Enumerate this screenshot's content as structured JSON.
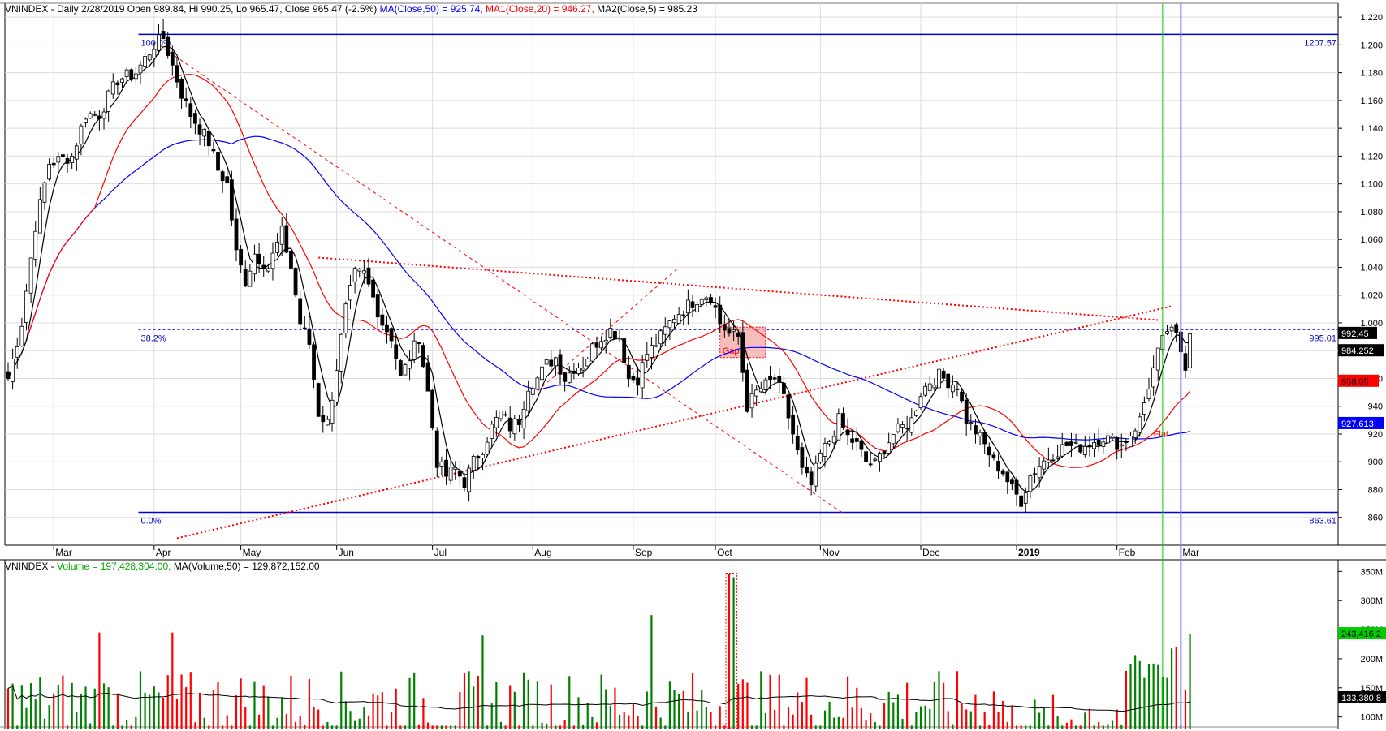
{
  "price_header": {
    "title": "VNINDEX - Daily 2/28/2019 Open 989.84, Hi 990.25, Lo 965.47, Close 965.47 (-2.5%)",
    "ma50": "MA(Close,50) = 925.74,",
    "ma20": "MA1(Close,20) = 946.27,",
    "ma5": "MA2(Close,5) = 985.23"
  },
  "volume_header": {
    "title": "VNINDEX - ",
    "vol": "Volume = 197,428,304.00,",
    "ma": "MA(Volume,50) = 129,872,152.00"
  },
  "colors": {
    "up": "#008000",
    "down": "#ff0000",
    "ma50": "#0000ff",
    "ma20": "#ff0000",
    "ma5": "#000000",
    "fib": "#0000cc",
    "trend": "#ff0000",
    "marker_green": "#00cc00",
    "marker_blue": "#8080ff",
    "grid": "#dcdcdc"
  },
  "chart_data": [
    {
      "type": "candlestick",
      "title": "VNINDEX - Daily",
      "ylim": [
        840,
        1230
      ],
      "y_ticks": [
        860,
        880,
        900,
        920,
        940,
        960,
        980,
        1000,
        1020,
        1040,
        1060,
        1080,
        1100,
        1120,
        1140,
        1160,
        1180,
        1200,
        1220
      ],
      "x_tick_labels": [
        {
          "label": "Mar",
          "i": 10
        },
        {
          "label": "Apr",
          "i": 32
        },
        {
          "label": "May",
          "i": 51
        },
        {
          "label": "Jun",
          "i": 72
        },
        {
          "label": "Jul",
          "i": 93
        },
        {
          "label": "Aug",
          "i": 115
        },
        {
          "label": "Sep",
          "i": 137
        },
        {
          "label": "Oct",
          "i": 155
        },
        {
          "label": "Nov",
          "i": 178
        },
        {
          "label": "Dec",
          "i": 200
        },
        {
          "label": "2019",
          "i": 221,
          "bold": true
        },
        {
          "label": "Feb",
          "i": 243
        },
        {
          "label": "Mar",
          "i": 257
        }
      ],
      "n_bars": 260,
      "anchors": [
        [
          0,
          960
        ],
        [
          3,
          1000
        ],
        [
          6,
          1070
        ],
        [
          9,
          1115
        ],
        [
          14,
          1120
        ],
        [
          17,
          1150
        ],
        [
          20,
          1150
        ],
        [
          24,
          1175
        ],
        [
          28,
          1180
        ],
        [
          32,
          1200
        ],
        [
          34,
          1205
        ],
        [
          36,
          1185
        ],
        [
          38,
          1165
        ],
        [
          40,
          1150
        ],
        [
          42,
          1140
        ],
        [
          44,
          1130
        ],
        [
          46,
          1110
        ],
        [
          48,
          1100
        ],
        [
          50,
          1050
        ],
        [
          52,
          1030
        ],
        [
          54,
          1050
        ],
        [
          57,
          1040
        ],
        [
          60,
          1065
        ],
        [
          62,
          1040
        ],
        [
          64,
          1000
        ],
        [
          66,
          985
        ],
        [
          68,
          935
        ],
        [
          70,
          928
        ],
        [
          72,
          968
        ],
        [
          74,
          1010
        ],
        [
          76,
          1035
        ],
        [
          78,
          1035
        ],
        [
          80,
          1018
        ],
        [
          82,
          1000
        ],
        [
          84,
          990
        ],
        [
          86,
          960
        ],
        [
          88,
          975
        ],
        [
          90,
          990
        ],
        [
          92,
          950
        ],
        [
          94,
          900
        ],
        [
          96,
          890
        ],
        [
          98,
          895
        ],
        [
          100,
          885
        ],
        [
          102,
          900
        ],
        [
          104,
          910
        ],
        [
          106,
          925
        ],
        [
          108,
          935
        ],
        [
          110,
          925
        ],
        [
          112,
          930
        ],
        [
          114,
          955
        ],
        [
          116,
          960
        ],
        [
          118,
          970
        ],
        [
          120,
          975
        ],
        [
          122,
          960
        ],
        [
          124,
          968
        ],
        [
          126,
          970
        ],
        [
          128,
          982
        ],
        [
          130,
          990
        ],
        [
          132,
          995
        ],
        [
          134,
          990
        ],
        [
          136,
          960
        ],
        [
          138,
          960
        ],
        [
          140,
          978
        ],
        [
          142,
          985
        ],
        [
          144,
          995
        ],
        [
          146,
          1005
        ],
        [
          148,
          1010
        ],
        [
          150,
          1015
        ],
        [
          152,
          1020
        ],
        [
          154,
          1020
        ],
        [
          156,
          1000
        ],
        [
          158,
          992
        ],
        [
          160,
          990
        ],
        [
          162,
          940
        ],
        [
          164,
          950
        ],
        [
          166,
          955
        ],
        [
          168,
          960
        ],
        [
          170,
          945
        ],
        [
          172,
          920
        ],
        [
          174,
          893
        ],
        [
          176,
          883
        ],
        [
          178,
          905
        ],
        [
          180,
          915
        ],
        [
          182,
          930
        ],
        [
          184,
          918
        ],
        [
          186,
          912
        ],
        [
          188,
          900
        ],
        [
          190,
          898
        ],
        [
          192,
          910
        ],
        [
          194,
          920
        ],
        [
          196,
          925
        ],
        [
          198,
          930
        ],
        [
          200,
          950
        ],
        [
          202,
          958
        ],
        [
          204,
          962
        ],
        [
          206,
          958
        ],
        [
          208,
          955
        ],
        [
          210,
          930
        ],
        [
          212,
          922
        ],
        [
          214,
          912
        ],
        [
          216,
          900
        ],
        [
          218,
          893
        ],
        [
          220,
          880
        ],
        [
          222,
          872
        ],
        [
          224,
          890
        ],
        [
          226,
          898
        ],
        [
          228,
          903
        ],
        [
          230,
          908
        ],
        [
          232,
          912
        ],
        [
          234,
          910
        ],
        [
          236,
          912
        ],
        [
          238,
          915
        ],
        [
          240,
          918
        ],
        [
          242,
          915
        ],
        [
          244,
          912
        ],
        [
          246,
          920
        ],
        [
          248,
          930
        ],
        [
          250,
          955
        ],
        [
          252,
          978
        ],
        [
          254,
          995
        ],
        [
          256,
          990
        ],
        [
          257,
          980
        ],
        [
          258,
          970
        ],
        [
          259,
          995
        ]
      ],
      "bands": [
        {
          "label": "0.0%",
          "value": 863.61,
          "right_label": "863.61"
        },
        {
          "label": "38.2%",
          "value": 995.01,
          "right_label": "995.01"
        },
        {
          "label": "100.0%",
          "value": 1207.57,
          "right_label": "1207.57"
        }
      ],
      "annotations": [
        {
          "text": "Gap"
        },
        {
          "text": "Flat"
        }
      ],
      "right_badges": [
        {
          "text": "992.45"
        },
        {
          "text": "984.252"
        },
        {
          "text": "958.05"
        },
        {
          "text": "927.613"
        }
      ]
    },
    {
      "type": "bar",
      "title": "VNINDEX - Volume",
      "ylim": [
        80,
        370
      ],
      "y_tick_labels": [
        {
          "label": "350M",
          "value": 350
        },
        {
          "label": "300M",
          "value": 300
        },
        {
          "label": "250M",
          "value": 250
        },
        {
          "label": "200M",
          "value": 200
        },
        {
          "label": "150M",
          "value": 150
        },
        {
          "label": "100M",
          "value": 100
        }
      ],
      "unit": "M",
      "right_badges": [
        {
          "text": "243,416,2"
        },
        {
          "text": "133,380,8"
        }
      ]
    }
  ]
}
